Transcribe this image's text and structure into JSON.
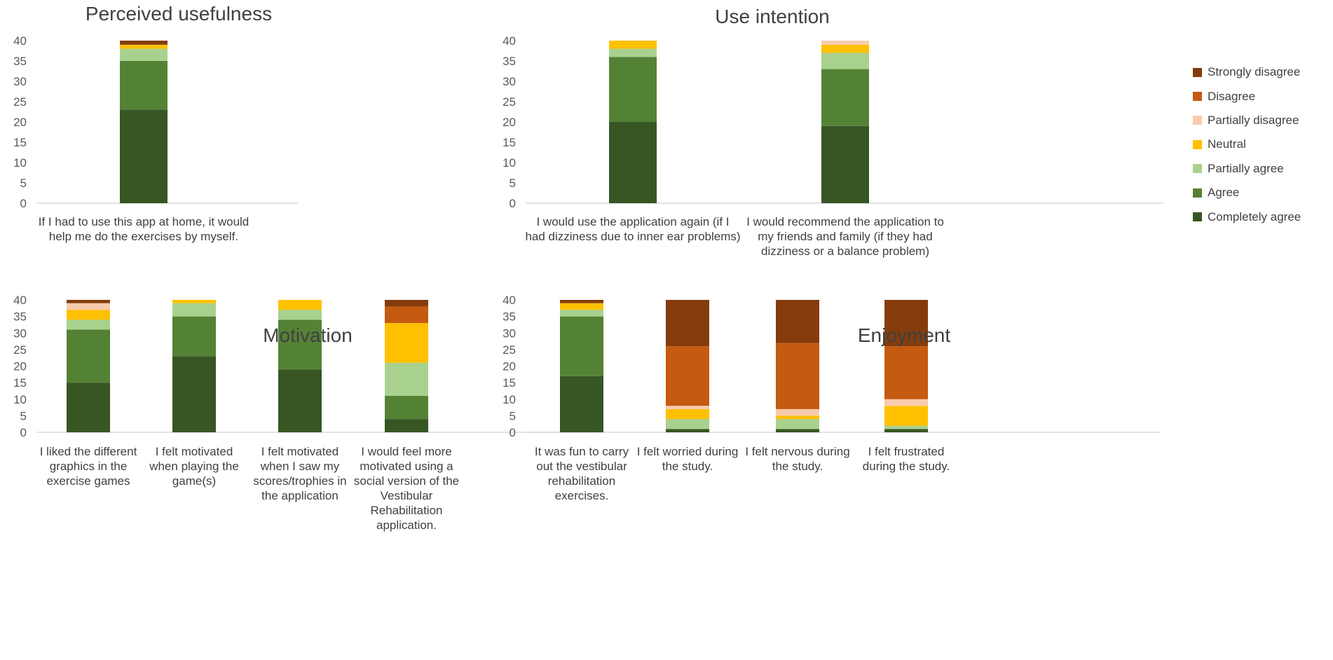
{
  "legend": {
    "items": [
      {
        "name": "Strongly disagree",
        "color": "#843C0C"
      },
      {
        "name": "Disagree",
        "color": "#C55A11"
      },
      {
        "name": "Partially disagree",
        "color": "#F8CBAD"
      },
      {
        "name": "Neutral",
        "color": "#FFC000"
      },
      {
        "name": "Partially agree",
        "color": "#A9D18E"
      },
      {
        "name": "Agree",
        "color": "#548235"
      },
      {
        "name": "Completely agree",
        "color": "#375623"
      }
    ]
  },
  "chart_data": [
    {
      "type": "bar",
      "stacked": true,
      "title": "Perceived usefulness",
      "ylim": [
        0,
        40
      ],
      "yticks": [
        0,
        5,
        10,
        15,
        20,
        25,
        30,
        35,
        40
      ],
      "categories": [
        "If I had to use this app at home, it would\nhelp me do the exercises by myself."
      ],
      "series": [
        {
          "name": "Completely agree",
          "values": [
            23
          ]
        },
        {
          "name": "Agree",
          "values": [
            12
          ]
        },
        {
          "name": "Partially agree",
          "values": [
            3
          ]
        },
        {
          "name": "Neutral",
          "values": [
            1
          ]
        },
        {
          "name": "Partially disagree",
          "values": [
            0
          ]
        },
        {
          "name": "Disagree",
          "values": [
            0
          ]
        },
        {
          "name": "Strongly disagree",
          "values": [
            1
          ]
        }
      ]
    },
    {
      "type": "bar",
      "stacked": true,
      "title": "Use intention",
      "ylim": [
        0,
        40
      ],
      "yticks": [
        0,
        5,
        10,
        15,
        20,
        25,
        30,
        35,
        40
      ],
      "categories": [
        "I would use the application again (if I\nhad dizziness due to inner ear problems)",
        "I would recommend the application to\nmy friends and family (if they had\ndizziness or a balance problem)"
      ],
      "series": [
        {
          "name": "Completely agree",
          "values": [
            20,
            19
          ]
        },
        {
          "name": "Agree",
          "values": [
            16,
            14
          ]
        },
        {
          "name": "Partially agree",
          "values": [
            2,
            4
          ]
        },
        {
          "name": "Neutral",
          "values": [
            2,
            2
          ]
        },
        {
          "name": "Partially disagree",
          "values": [
            0,
            1
          ]
        },
        {
          "name": "Disagree",
          "values": [
            0,
            0
          ]
        },
        {
          "name": "Strongly disagree",
          "values": [
            0,
            0
          ]
        }
      ]
    },
    {
      "type": "bar",
      "stacked": true,
      "title": "Motivation",
      "ylim": [
        0,
        40
      ],
      "yticks": [
        0,
        5,
        10,
        15,
        20,
        25,
        30,
        35,
        40
      ],
      "categories": [
        "I liked the different\ngraphics in the\nexercise games",
        "I felt motivated\nwhen playing the\ngame(s)",
        "I felt motivated\nwhen I saw my\nscores/trophies in\nthe application",
        "I would feel more\nmotivated using a\nsocial version of the\nVestibular\nRehabilitation\napplication."
      ],
      "series": [
        {
          "name": "Completely agree",
          "values": [
            15,
            23,
            19,
            4
          ]
        },
        {
          "name": "Agree",
          "values": [
            16,
            12,
            15,
            7
          ]
        },
        {
          "name": "Partially agree",
          "values": [
            3,
            4,
            3,
            10
          ]
        },
        {
          "name": "Neutral",
          "values": [
            3,
            1,
            3,
            12
          ]
        },
        {
          "name": "Partially disagree",
          "values": [
            2,
            0,
            0,
            0
          ]
        },
        {
          "name": "Disagree",
          "values": [
            0,
            0,
            0,
            5
          ]
        },
        {
          "name": "Strongly disagree",
          "values": [
            1,
            0,
            0,
            2
          ]
        }
      ]
    },
    {
      "type": "bar",
      "stacked": true,
      "title": "Enjoyment",
      "ylim": [
        0,
        40
      ],
      "yticks": [
        0,
        5,
        10,
        15,
        20,
        25,
        30,
        35,
        40
      ],
      "categories": [
        "It was fun to carry\nout the vestibular\nrehabilitation\nexercises.",
        "I felt worried during\nthe study.",
        "I felt nervous during\nthe study.",
        "I felt frustrated\nduring the study."
      ],
      "series": [
        {
          "name": "Completely agree",
          "values": [
            17,
            1,
            1,
            1
          ]
        },
        {
          "name": "Agree",
          "values": [
            18,
            0,
            0,
            0
          ]
        },
        {
          "name": "Partially agree",
          "values": [
            2,
            3,
            3,
            1
          ]
        },
        {
          "name": "Neutral",
          "values": [
            2,
            3,
            1,
            6
          ]
        },
        {
          "name": "Partially disagree",
          "values": [
            0,
            1,
            2,
            2
          ]
        },
        {
          "name": "Disagree",
          "values": [
            0,
            18,
            20,
            16
          ]
        },
        {
          "name": "Strongly disagree",
          "values": [
            1,
            14,
            13,
            14
          ]
        }
      ]
    }
  ]
}
